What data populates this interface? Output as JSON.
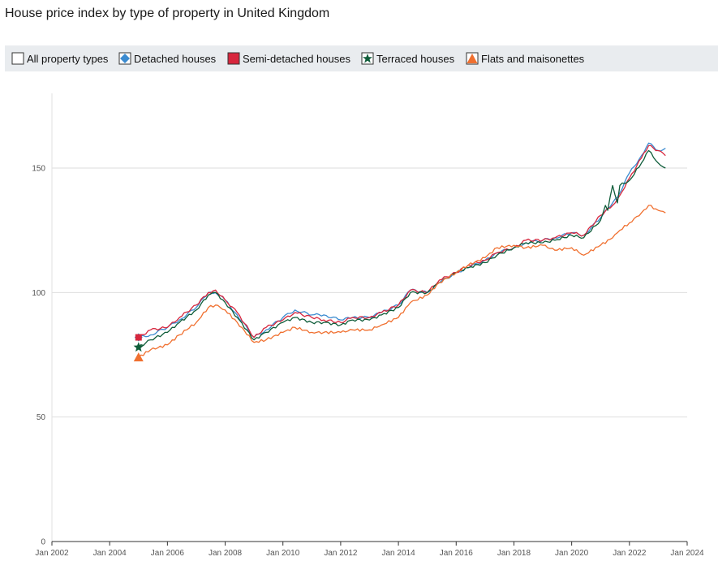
{
  "title": "House price index by type of property in United Kingdom",
  "legend": [
    {
      "key": "all",
      "label": "All property types",
      "color": "#ffffff",
      "border": "#333333",
      "marker": "box"
    },
    {
      "key": "detached",
      "label": "Detached houses",
      "color": "#3b8bd0",
      "border": "#333333",
      "marker": "diamond"
    },
    {
      "key": "semi",
      "label": "Semi-detached houses",
      "color": "#d7263d",
      "border": "#333333",
      "marker": "square"
    },
    {
      "key": "terraced",
      "label": "Terraced houses",
      "color": "#0f5d3a",
      "border": "#333333",
      "marker": "star"
    },
    {
      "key": "flats",
      "label": "Flats and maisonettes",
      "color": "#f07030",
      "border": "#333333",
      "marker": "triangle"
    }
  ],
  "chart_data": {
    "type": "line",
    "title": "House price index by type of property in United Kingdom",
    "xlabel": "",
    "ylabel": "",
    "xlim": [
      "2002-01",
      "2024-01"
    ],
    "ylim": [
      0,
      180
    ],
    "yticks": [
      0,
      50,
      100,
      150
    ],
    "xticks": [
      "Jan 2002",
      "Jan 2004",
      "Jan 2006",
      "Jan 2008",
      "Jan 2010",
      "Jan 2012",
      "Jan 2014",
      "Jan 2016",
      "Jan 2018",
      "Jan 2020",
      "Jan 2022",
      "Jan 2024"
    ],
    "grid": "horizontal",
    "legend_position": "top",
    "series": [
      {
        "name": "Detached houses",
        "color": "#3b8bd0",
        "marker": "diamond",
        "points": [
          [
            "2005-01",
            82
          ],
          [
            "2005-06",
            83
          ],
          [
            "2006-01",
            86
          ],
          [
            "2006-06",
            89
          ],
          [
            "2007-01",
            94
          ],
          [
            "2007-06",
            100
          ],
          [
            "2007-09",
            100
          ],
          [
            "2008-01",
            97
          ],
          [
            "2008-06",
            91
          ],
          [
            "2009-01",
            82
          ],
          [
            "2009-06",
            85
          ],
          [
            "2010-01",
            90
          ],
          [
            "2010-06",
            93
          ],
          [
            "2011-01",
            91
          ],
          [
            "2011-06",
            91
          ],
          [
            "2012-01",
            89
          ],
          [
            "2012-06",
            90
          ],
          [
            "2013-01",
            90
          ],
          [
            "2013-06",
            92
          ],
          [
            "2014-01",
            95
          ],
          [
            "2014-06",
            101
          ],
          [
            "2015-01",
            100
          ],
          [
            "2015-06",
            104
          ],
          [
            "2016-01",
            108
          ],
          [
            "2016-06",
            110
          ],
          [
            "2017-01",
            113
          ],
          [
            "2017-06",
            116
          ],
          [
            "2018-01",
            118
          ],
          [
            "2018-06",
            120
          ],
          [
            "2019-01",
            121
          ],
          [
            "2019-06",
            122
          ],
          [
            "2020-01",
            124
          ],
          [
            "2020-06",
            123
          ],
          [
            "2021-01",
            130
          ],
          [
            "2021-06",
            136
          ],
          [
            "2021-09",
            140
          ],
          [
            "2022-01",
            148
          ],
          [
            "2022-06",
            155
          ],
          [
            "2022-09",
            160
          ],
          [
            "2023-01",
            157
          ],
          [
            "2023-04",
            158
          ]
        ]
      },
      {
        "name": "Semi-detached houses",
        "color": "#d7263d",
        "marker": "square",
        "points": [
          [
            "2005-01",
            82
          ],
          [
            "2005-06",
            85
          ],
          [
            "2006-01",
            86
          ],
          [
            "2006-06",
            90
          ],
          [
            "2007-01",
            95
          ],
          [
            "2007-06",
            100
          ],
          [
            "2007-09",
            101
          ],
          [
            "2008-01",
            97
          ],
          [
            "2008-06",
            92
          ],
          [
            "2009-01",
            82
          ],
          [
            "2009-06",
            86
          ],
          [
            "2010-01",
            89
          ],
          [
            "2010-06",
            92
          ],
          [
            "2011-01",
            90
          ],
          [
            "2011-06",
            89
          ],
          [
            "2012-01",
            88
          ],
          [
            "2012-06",
            90
          ],
          [
            "2013-01",
            90
          ],
          [
            "2013-06",
            92
          ],
          [
            "2014-01",
            95
          ],
          [
            "2014-06",
            101
          ],
          [
            "2015-01",
            100
          ],
          [
            "2015-06",
            105
          ],
          [
            "2016-01",
            108
          ],
          [
            "2016-06",
            111
          ],
          [
            "2017-01",
            113
          ],
          [
            "2017-06",
            116
          ],
          [
            "2018-01",
            118
          ],
          [
            "2018-06",
            121
          ],
          [
            "2019-01",
            121
          ],
          [
            "2019-06",
            122
          ],
          [
            "2020-01",
            124
          ],
          [
            "2020-06",
            123
          ],
          [
            "2021-01",
            131
          ],
          [
            "2021-06",
            135
          ],
          [
            "2021-09",
            139
          ],
          [
            "2022-01",
            146
          ],
          [
            "2022-06",
            154
          ],
          [
            "2022-09",
            159
          ],
          [
            "2023-01",
            157
          ],
          [
            "2023-04",
            155
          ]
        ]
      },
      {
        "name": "Terraced houses",
        "color": "#0f5d3a",
        "marker": "star",
        "points": [
          [
            "2005-01",
            78
          ],
          [
            "2005-06",
            81
          ],
          [
            "2006-01",
            84
          ],
          [
            "2006-06",
            88
          ],
          [
            "2007-01",
            93
          ],
          [
            "2007-06",
            99
          ],
          [
            "2007-09",
            100
          ],
          [
            "2008-01",
            96
          ],
          [
            "2008-06",
            90
          ],
          [
            "2009-01",
            81
          ],
          [
            "2009-06",
            84
          ],
          [
            "2010-01",
            88
          ],
          [
            "2010-06",
            90
          ],
          [
            "2011-01",
            88
          ],
          [
            "2011-06",
            88
          ],
          [
            "2012-01",
            87
          ],
          [
            "2012-06",
            89
          ],
          [
            "2013-01",
            89
          ],
          [
            "2013-06",
            91
          ],
          [
            "2014-01",
            94
          ],
          [
            "2014-06",
            100
          ],
          [
            "2015-01",
            100
          ],
          [
            "2015-06",
            104
          ],
          [
            "2016-01",
            108
          ],
          [
            "2016-06",
            110
          ],
          [
            "2017-01",
            112
          ],
          [
            "2017-06",
            115
          ],
          [
            "2018-01",
            118
          ],
          [
            "2018-06",
            120
          ],
          [
            "2019-01",
            120
          ],
          [
            "2019-06",
            121
          ],
          [
            "2020-01",
            123
          ],
          [
            "2020-06",
            122
          ],
          [
            "2021-01",
            129
          ],
          [
            "2021-03",
            135
          ],
          [
            "2021-04",
            133
          ],
          [
            "2021-06",
            143
          ],
          [
            "2021-08",
            136
          ],
          [
            "2021-09",
            143
          ],
          [
            "2022-01",
            145
          ],
          [
            "2022-06",
            152
          ],
          [
            "2022-09",
            157
          ],
          [
            "2023-01",
            152
          ],
          [
            "2023-04",
            150
          ]
        ]
      },
      {
        "name": "Flats and maisonettes",
        "color": "#f07030",
        "marker": "triangle",
        "points": [
          [
            "2005-01",
            74
          ],
          [
            "2005-06",
            77
          ],
          [
            "2006-01",
            79
          ],
          [
            "2006-06",
            83
          ],
          [
            "2007-01",
            88
          ],
          [
            "2007-06",
            94
          ],
          [
            "2007-09",
            95
          ],
          [
            "2008-01",
            93
          ],
          [
            "2008-06",
            88
          ],
          [
            "2009-01",
            80
          ],
          [
            "2009-06",
            81
          ],
          [
            "2010-01",
            84
          ],
          [
            "2010-06",
            86
          ],
          [
            "2011-01",
            84
          ],
          [
            "2011-06",
            84
          ],
          [
            "2012-01",
            84
          ],
          [
            "2012-06",
            85
          ],
          [
            "2013-01",
            85
          ],
          [
            "2013-06",
            87
          ],
          [
            "2014-01",
            90
          ],
          [
            "2014-06",
            96
          ],
          [
            "2015-01",
            99
          ],
          [
            "2015-06",
            104
          ],
          [
            "2016-01",
            108
          ],
          [
            "2016-06",
            111
          ],
          [
            "2017-01",
            114
          ],
          [
            "2017-06",
            118
          ],
          [
            "2018-01",
            119
          ],
          [
            "2018-06",
            118
          ],
          [
            "2019-01",
            119
          ],
          [
            "2019-06",
            117
          ],
          [
            "2020-01",
            118
          ],
          [
            "2020-06",
            115
          ],
          [
            "2021-01",
            119
          ],
          [
            "2021-06",
            122
          ],
          [
            "2021-09",
            125
          ],
          [
            "2022-01",
            128
          ],
          [
            "2022-06",
            132
          ],
          [
            "2022-09",
            135
          ],
          [
            "2023-01",
            133
          ],
          [
            "2023-04",
            132
          ]
        ]
      }
    ]
  }
}
